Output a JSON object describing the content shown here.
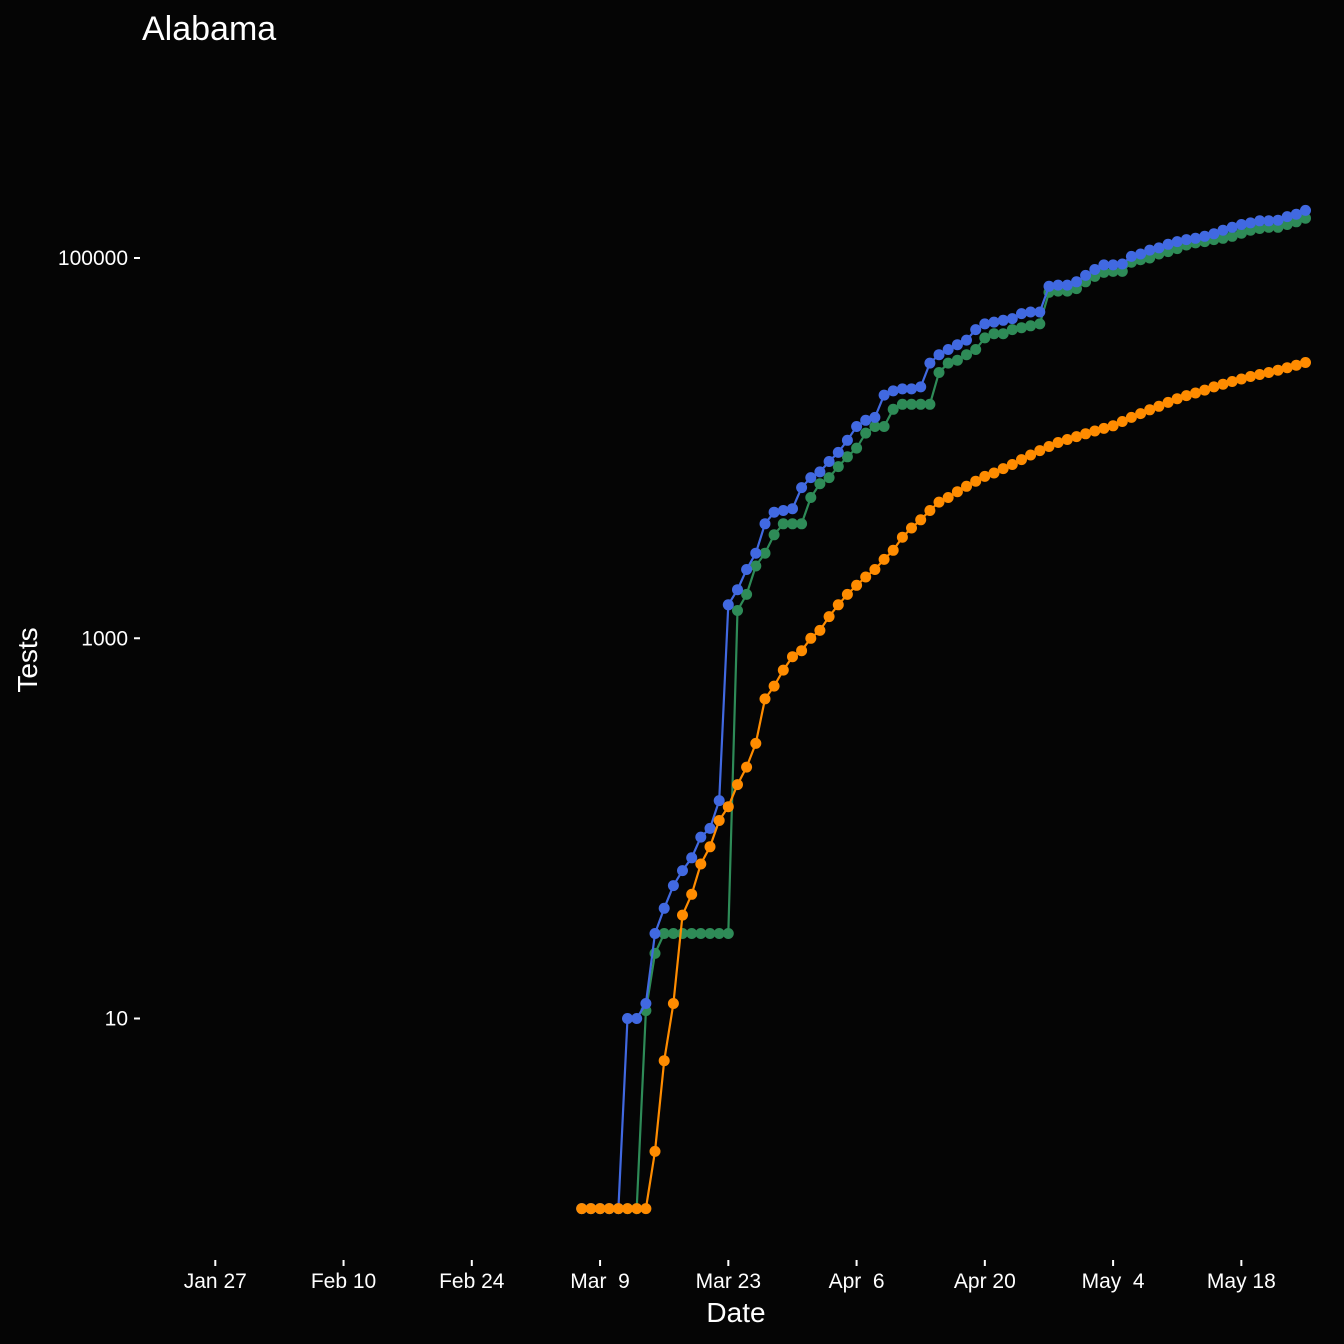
{
  "chart_data": {
    "type": "line",
    "title": "Alabama",
    "xlabel": "Date",
    "ylabel": "Tests",
    "x_scale": "date",
    "y_scale": "log10",
    "xlim": [
      "2020-01-19",
      "2020-05-22"
    ],
    "ylim": [
      0.55,
      1100000
    ],
    "grid": false,
    "x_ticks": [
      {
        "date": "2020-01-27",
        "label": "Jan 27"
      },
      {
        "date": "2020-02-10",
        "label": "Feb 10"
      },
      {
        "date": "2020-02-24",
        "label": "Feb 24"
      },
      {
        "date": "2020-03-09",
        "label": "Mar  9"
      },
      {
        "date": "2020-03-23",
        "label": "Mar 23"
      },
      {
        "date": "2020-04-06",
        "label": "Apr  6"
      },
      {
        "date": "2020-04-20",
        "label": "Apr 20"
      },
      {
        "date": "2020-05-04",
        "label": "May  4"
      },
      {
        "date": "2020-05-18",
        "label": "May 18"
      }
    ],
    "y_ticks": [
      {
        "value": 10,
        "label": "10"
      },
      {
        "value": 1000,
        "label": "1000"
      },
      {
        "value": 100000,
        "label": "100000"
      }
    ],
    "x_start": "2020-03-07",
    "series": [
      {
        "color": "#2e8b57",
        "values": [
          1,
          1,
          1,
          1,
          1,
          1,
          1,
          11,
          22,
          28,
          28,
          28,
          28,
          28,
          28,
          28,
          28,
          1400,
          1700,
          2400,
          2800,
          3500,
          4000,
          4000,
          4000,
          5500,
          6500,
          7000,
          8000,
          9000,
          10000,
          12000,
          13000,
          13000,
          16000,
          17000,
          17000,
          17000,
          17000,
          25000,
          28000,
          29000,
          31000,
          33000,
          38000,
          40000,
          40000,
          42000,
          43000,
          44000,
          45000,
          66000,
          67000,
          67000,
          69000,
          75000,
          80000,
          84000,
          85000,
          85000,
          95000,
          98000,
          100000,
          105000,
          108000,
          112000,
          117000,
          120000,
          122000,
          125000,
          127000,
          130000,
          135000,
          140000,
          143000,
          145000,
          145000,
          150000,
          155000,
          162000
        ]
      },
      {
        "color": "#4169e1",
        "values": [
          1,
          1,
          1,
          1,
          1,
          10,
          10,
          12,
          28,
          38,
          50,
          60,
          70,
          90,
          100,
          140,
          1500,
          1800,
          2300,
          2800,
          4000,
          4600,
          4700,
          4800,
          6200,
          7000,
          7500,
          8500,
          9500,
          11000,
          13000,
          14000,
          14500,
          19000,
          20000,
          20500,
          20500,
          21000,
          28000,
          31000,
          33000,
          35000,
          37000,
          42000,
          45000,
          46000,
          47000,
          48000,
          51000,
          52000,
          52000,
          71000,
          72000,
          72000,
          75000,
          81000,
          87000,
          92000,
          92000,
          93000,
          102000,
          105000,
          110000,
          113000,
          118000,
          122000,
          125000,
          127000,
          130000,
          134000,
          140000,
          145000,
          150000,
          153000,
          157000,
          157000,
          158000,
          165000,
          170000,
          178000
        ]
      },
      {
        "color": "#ff8c00",
        "values": [
          1,
          1,
          1,
          1,
          1,
          1,
          1,
          1,
          2,
          6,
          12,
          35,
          45,
          65,
          80,
          110,
          130,
          170,
          210,
          280,
          480,
          560,
          680,
          800,
          860,
          1000,
          1100,
          1300,
          1500,
          1700,
          1900,
          2100,
          2300,
          2600,
          2900,
          3400,
          3800,
          4200,
          4700,
          5200,
          5500,
          5900,
          6300,
          6700,
          7100,
          7400,
          7800,
          8200,
          8700,
          9200,
          9700,
          10200,
          10700,
          11100,
          11500,
          11900,
          12300,
          12700,
          13100,
          13800,
          14500,
          15200,
          15900,
          16600,
          17400,
          18200,
          18900,
          19500,
          20200,
          21000,
          21700,
          22400,
          23100,
          23800,
          24400,
          25000,
          25700,
          26500,
          27300,
          28200
        ]
      }
    ]
  }
}
